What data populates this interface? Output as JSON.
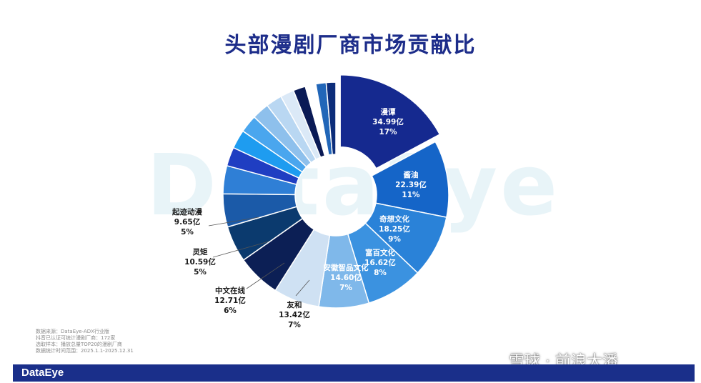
{
  "title": "头部漫剧厂商市场贡献比",
  "watermark": "DataEye",
  "notes": [
    "数据来源：DataEye-ADX行业版",
    "抖音已认证可统计漫剧厂商：172家",
    "选取样本：播放总量TOP20的漫剧厂商",
    "数据统计时间范围：2025.1.1-2025.12.31"
  ],
  "footer_logo": "DataEye",
  "social_watermark": "雪球 · 前浪大潘",
  "colors": {
    "title": "#1d2d8a",
    "footer": "#1a2f8a"
  },
  "chart_data": {
    "type": "pie",
    "subtype": "donut",
    "title": "头部漫剧厂商市场贡献比",
    "slices": [
      {
        "name": "漫谭",
        "value": "34.99亿",
        "value_num": 34.99,
        "percent": "17%",
        "color": "#15298f",
        "exploded": true
      },
      {
        "name": "酱油",
        "value": "22.39亿",
        "value_num": 22.39,
        "percent": "11%",
        "color": "#1565c8"
      },
      {
        "name": "奇想文化",
        "value": "18.25亿",
        "value_num": 18.25,
        "percent": "9%",
        "color": "#2a82d8"
      },
      {
        "name": "富百文化",
        "value": "16.62亿",
        "value_num": 16.62,
        "percent": "8%",
        "color": "#3b92e0"
      },
      {
        "name": "安徽智品文化",
        "value": "14.60亿",
        "value_num": 14.6,
        "percent": "7%",
        "color": "#7fb8ea"
      },
      {
        "name": "友和",
        "value": "13.42亿",
        "value_num": 13.42,
        "percent": "7%",
        "color": "#cfe1f3"
      },
      {
        "name": "中文在线",
        "value": "12.71亿",
        "value_num": 12.71,
        "percent": "6%",
        "color": "#0c1f55"
      },
      {
        "name": "灵矩",
        "value": "10.59亿",
        "value_num": 10.59,
        "percent": "5%",
        "color": "#0b3a6e"
      },
      {
        "name": "起迹动漫",
        "value": "9.65亿",
        "value_num": 9.65,
        "percent": "5%",
        "color": "#1b5aa8"
      },
      {
        "name": "",
        "value_num": 8.2,
        "color": "#2f7fd6"
      },
      {
        "name": "",
        "value_num": 5.5,
        "color": "#1f3ec2"
      },
      {
        "name": "",
        "value_num": 5.5,
        "color": "#1e9cf0"
      },
      {
        "name": "",
        "value_num": 5.2,
        "color": "#4aa6ee"
      },
      {
        "name": "",
        "value_num": 5.0,
        "color": "#8ec0ec"
      },
      {
        "name": "",
        "value_num": 4.7,
        "color": "#b9d7f2"
      },
      {
        "name": "",
        "value_num": 4.0,
        "color": "#dbe9f7"
      },
      {
        "name": "",
        "value_num": 3.6,
        "color": "#0a1a55"
      },
      {
        "name": "",
        "value_num": 3.1,
        "color": "#ffffff"
      },
      {
        "name": "",
        "value_num": 3.0,
        "color": "#2166b8"
      },
      {
        "name": "",
        "value_num": 2.8,
        "color": "#0c2d7a"
      }
    ]
  }
}
